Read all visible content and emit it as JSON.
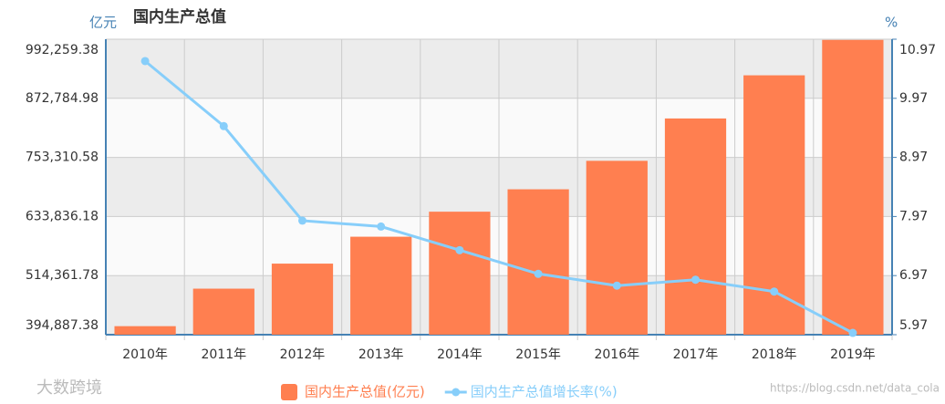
{
  "chart_data": {
    "type": "bar",
    "title": "国内生产总值",
    "y_unit": "亿元",
    "y2_unit": "%",
    "categories": [
      "2010年",
      "2011年",
      "2012年",
      "2013年",
      "2014年",
      "2015年",
      "2016年",
      "2017年",
      "2018年",
      "2019年"
    ],
    "series": [
      {
        "name": "国内生产总值(亿元)",
        "type": "bar",
        "color": "#ff7f50",
        "values": [
          412119,
          487940,
          538580,
          592963,
          643563,
          688858,
          746395,
          832036,
          919281,
          990865
        ]
      },
      {
        "name": "国内生产总值增长率(%)",
        "type": "line",
        "axis": "y2",
        "color": "#87cefa",
        "values": [
          10.6,
          9.5,
          7.9,
          7.8,
          7.4,
          7.0,
          6.8,
          6.9,
          6.7,
          6.0
        ]
      }
    ],
    "ylim": [
      394887.38,
      992259.38
    ],
    "yticks": [
      {
        "value": 394887.38,
        "label": "394,887.38"
      },
      {
        "value": 514361.78,
        "label": "514,361.78"
      },
      {
        "value": 633836.18,
        "label": "633,836.18"
      },
      {
        "value": 753310.58,
        "label": "753,310.58"
      },
      {
        "value": 872784.98,
        "label": "872,784.98"
      },
      {
        "value": 992259.38,
        "label": "992,259.38"
      }
    ],
    "y2lim": [
      5.97,
      10.97
    ],
    "y2ticks": [
      5.97,
      6.97,
      7.97,
      8.97,
      9.97,
      10.97
    ],
    "grid": true,
    "legend": "bottom",
    "watermarks": [
      "大数跨境",
      "https://blog.csdn.net/data_cola"
    ]
  }
}
